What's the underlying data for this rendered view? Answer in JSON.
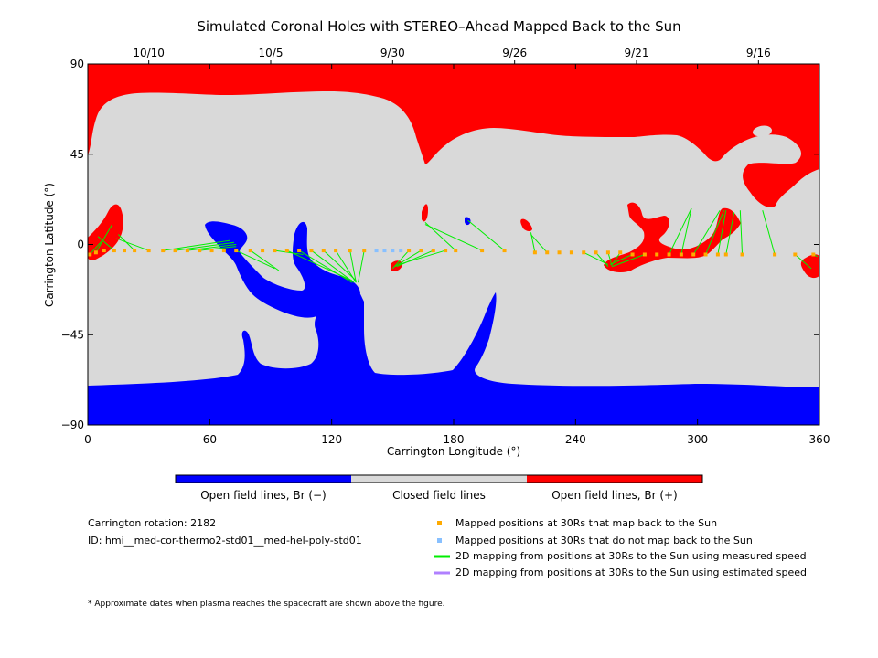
{
  "title": "Simulated Coronal Holes with STEREO–Ahead Mapped Back to the Sun",
  "chart_data": {
    "type": "scatter",
    "xlabel": "Carrington Longitude (°)",
    "ylabel": "Carrington Latitude (°)",
    "xlim": [
      0,
      360
    ],
    "ylim": [
      -90,
      90
    ],
    "x_ticks": [
      "0",
      "60",
      "120",
      "180",
      "240",
      "300",
      "360"
    ],
    "y_ticks": [
      "90",
      "45",
      "0",
      "−45",
      "−90"
    ],
    "top_dates": [
      {
        "label": "10/10",
        "lon": 30
      },
      {
        "label": "10/5",
        "lon": 90
      },
      {
        "label": "9/30",
        "lon": 150
      },
      {
        "label": "9/26",
        "lon": 210
      },
      {
        "label": "9/21",
        "lon": 270
      },
      {
        "label": "9/16",
        "lon": 330
      }
    ],
    "colors": {
      "open_negative": "#0000ff",
      "closed": "#d9d9d9",
      "open_positive": "#ff0000",
      "mapped": "#ffaa00",
      "unmapped": "#88c0ff",
      "measured_line": "#00ee00",
      "estimated_line": "#b080ff"
    },
    "mapped_points": [
      {
        "lon": 1,
        "lat": -5
      },
      {
        "lon": 4,
        "lat": -4
      },
      {
        "lon": 8,
        "lat": -3
      },
      {
        "lon": 13,
        "lat": -3
      },
      {
        "lon": 18,
        "lat": -3
      },
      {
        "lon": 23,
        "lat": -3
      },
      {
        "lon": 30,
        "lat": -3
      },
      {
        "lon": 37,
        "lat": -3
      },
      {
        "lon": 43,
        "lat": -3
      },
      {
        "lon": 49,
        "lat": -3
      },
      {
        "lon": 55,
        "lat": -3
      },
      {
        "lon": 61,
        "lat": -3
      },
      {
        "lon": 67,
        "lat": -3
      },
      {
        "lon": 73,
        "lat": -3
      },
      {
        "lon": 80,
        "lat": -3
      },
      {
        "lon": 86,
        "lat": -3
      },
      {
        "lon": 92,
        "lat": -3
      },
      {
        "lon": 98,
        "lat": -3
      },
      {
        "lon": 104,
        "lat": -3
      },
      {
        "lon": 110,
        "lat": -3
      },
      {
        "lon": 116,
        "lat": -3
      },
      {
        "lon": 122,
        "lat": -3
      },
      {
        "lon": 129,
        "lat": -3
      },
      {
        "lon": 136,
        "lat": -3
      },
      {
        "lon": 158,
        "lat": -3
      },
      {
        "lon": 164,
        "lat": -3
      },
      {
        "lon": 170,
        "lat": -3
      },
      {
        "lon": 176,
        "lat": -3
      },
      {
        "lon": 181,
        "lat": -3
      },
      {
        "lon": 194,
        "lat": -3
      },
      {
        "lon": 205,
        "lat": -3
      },
      {
        "lon": 220,
        "lat": -4
      },
      {
        "lon": 226,
        "lat": -4
      },
      {
        "lon": 232,
        "lat": -4
      },
      {
        "lon": 238,
        "lat": -4
      },
      {
        "lon": 244,
        "lat": -4
      },
      {
        "lon": 250,
        "lat": -4
      },
      {
        "lon": 256,
        "lat": -4
      },
      {
        "lon": 262,
        "lat": -4
      },
      {
        "lon": 268,
        "lat": -5
      },
      {
        "lon": 274,
        "lat": -5
      },
      {
        "lon": 280,
        "lat": -5
      },
      {
        "lon": 286,
        "lat": -5
      },
      {
        "lon": 292,
        "lat": -5
      },
      {
        "lon": 298,
        "lat": -5
      },
      {
        "lon": 304,
        "lat": -5
      },
      {
        "lon": 310,
        "lat": -5
      },
      {
        "lon": 314,
        "lat": -5
      },
      {
        "lon": 322,
        "lat": -5
      },
      {
        "lon": 338,
        "lat": -5
      },
      {
        "lon": 348,
        "lat": -5
      },
      {
        "lon": 357,
        "lat": -5
      }
    ],
    "unmapped_points": [
      {
        "lon": 142,
        "lat": -3
      },
      {
        "lon": 146,
        "lat": -3
      },
      {
        "lon": 150,
        "lat": -3
      },
      {
        "lon": 154,
        "lat": -3
      }
    ],
    "measured_lines": [
      {
        "from": [
          1,
          -5
        ],
        "to": [
          8,
          3
        ]
      },
      {
        "from": [
          4,
          -4
        ],
        "to": [
          12,
          10
        ]
      },
      {
        "from": [
          13,
          -3
        ],
        "to": [
          5,
          4
        ]
      },
      {
        "from": [
          23,
          -3
        ],
        "to": [
          15,
          5
        ]
      },
      {
        "from": [
          30,
          -3
        ],
        "to": [
          14,
          3
        ]
      },
      {
        "from": [
          37,
          -3
        ],
        "to": [
          70,
          2
        ]
      },
      {
        "from": [
          43,
          -3
        ],
        "to": [
          72,
          1
        ]
      },
      {
        "from": [
          49,
          -3
        ],
        "to": [
          73,
          0
        ]
      },
      {
        "from": [
          55,
          -3
        ],
        "to": [
          73,
          -1
        ]
      },
      {
        "from": [
          73,
          -3
        ],
        "to": [
          92,
          -12
        ]
      },
      {
        "from": [
          80,
          -3
        ],
        "to": [
          94,
          -13
        ]
      },
      {
        "from": [
          92,
          -3
        ],
        "to": [
          106,
          -5
        ]
      },
      {
        "from": [
          98,
          -3
        ],
        "to": [
          130,
          -18
        ]
      },
      {
        "from": [
          104,
          -3
        ],
        "to": [
          130,
          -19
        ]
      },
      {
        "from": [
          110,
          -3
        ],
        "to": [
          131,
          -19
        ]
      },
      {
        "from": [
          116,
          -3
        ],
        "to": [
          132,
          -18
        ]
      },
      {
        "from": [
          122,
          -3
        ],
        "to": [
          132,
          -19
        ]
      },
      {
        "from": [
          129,
          -3
        ],
        "to": [
          132,
          -19
        ]
      },
      {
        "from": [
          136,
          -3
        ],
        "to": [
          133,
          -19
        ]
      },
      {
        "from": [
          158,
          -3
        ],
        "to": [
          150,
          -12
        ]
      },
      {
        "from": [
          164,
          -3
        ],
        "to": [
          151,
          -11
        ]
      },
      {
        "from": [
          170,
          -3
        ],
        "to": [
          152,
          -11
        ]
      },
      {
        "from": [
          176,
          -3
        ],
        "to": [
          153,
          -10
        ]
      },
      {
        "from": [
          181,
          -3
        ],
        "to": [
          166,
          11
        ]
      },
      {
        "from": [
          194,
          -3
        ],
        "to": [
          166,
          10
        ]
      },
      {
        "from": [
          205,
          -3
        ],
        "to": [
          187,
          12
        ]
      },
      {
        "from": [
          220,
          -4
        ],
        "to": [
          218,
          6
        ]
      },
      {
        "from": [
          226,
          -4
        ],
        "to": [
          218,
          5
        ]
      },
      {
        "from": [
          244,
          -4
        ],
        "to": [
          256,
          -10
        ]
      },
      {
        "from": [
          250,
          -4
        ],
        "to": [
          256,
          -11
        ]
      },
      {
        "from": [
          256,
          -4
        ],
        "to": [
          258,
          -11
        ]
      },
      {
        "from": [
          262,
          -4
        ],
        "to": [
          258,
          -10
        ]
      },
      {
        "from": [
          268,
          -5
        ],
        "to": [
          257,
          -10
        ]
      },
      {
        "from": [
          274,
          -5
        ],
        "to": [
          258,
          -11
        ]
      },
      {
        "from": [
          286,
          -5
        ],
        "to": [
          297,
          18
        ]
      },
      {
        "from": [
          292,
          -5
        ],
        "to": [
          297,
          18
        ]
      },
      {
        "from": [
          298,
          -5
        ],
        "to": [
          311,
          17
        ]
      },
      {
        "from": [
          304,
          -5
        ],
        "to": [
          313,
          17
        ]
      },
      {
        "from": [
          310,
          -5
        ],
        "to": [
          314,
          17
        ]
      },
      {
        "from": [
          314,
          -5
        ],
        "to": [
          318,
          16
        ]
      },
      {
        "from": [
          322,
          -5
        ],
        "to": [
          321,
          17
        ]
      },
      {
        "from": [
          338,
          -5
        ],
        "to": [
          332,
          17
        ]
      },
      {
        "from": [
          348,
          -5
        ],
        "to": [
          356,
          -12
        ]
      },
      {
        "from": [
          357,
          -5
        ],
        "to": [
          359,
          -6
        ]
      }
    ]
  },
  "colorbar": {
    "labels": [
      "Open field lines, Br (−)",
      "Closed field lines",
      "Open field lines, Br (+)"
    ]
  },
  "info": {
    "rotation": "Carrington rotation: 2182",
    "id": "ID: hmi__med-cor-thermo2-std01__med-hel-poly-std01"
  },
  "legend": [
    {
      "label": "Mapped positions at 30Rs that map back to the Sun",
      "kind": "square",
      "color": "#ffaa00"
    },
    {
      "label": "Mapped positions at 30Rs that do not map back to the Sun",
      "kind": "square",
      "color": "#88c0ff"
    },
    {
      "label": "2D mapping from positions at 30Rs to the Sun using measured speed",
      "kind": "line",
      "color": "#00ee00"
    },
    {
      "label": "2D mapping from positions at 30Rs to the Sun using estimated speed",
      "kind": "line",
      "color": "#b080ff"
    }
  ],
  "footnote": "* Approximate dates when plasma reaches the spacecraft are shown above the figure."
}
